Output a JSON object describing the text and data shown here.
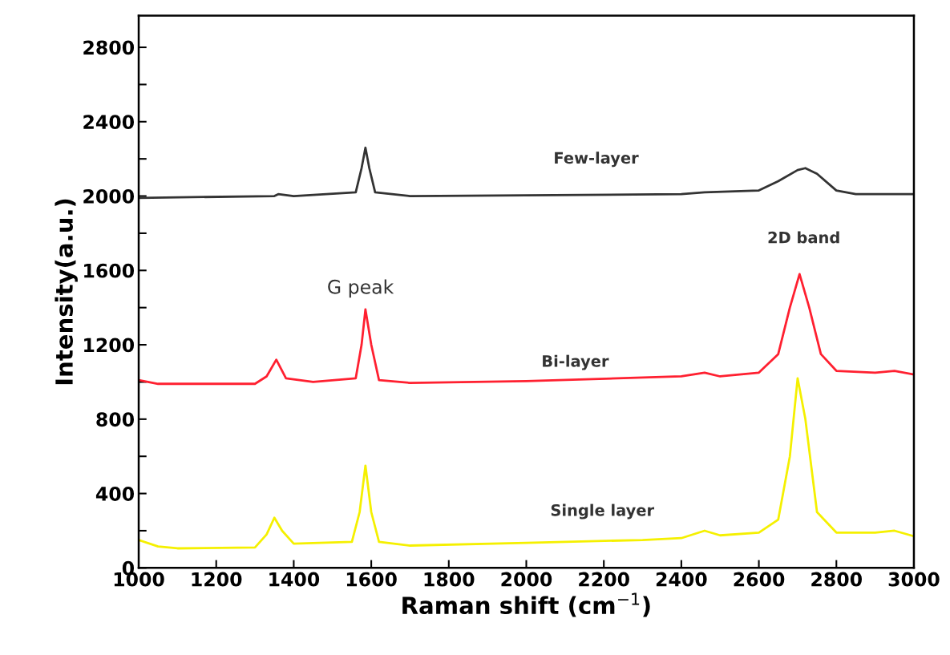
{
  "chart_data": {
    "type": "line",
    "xlabel": "Raman shift (cm$^{−1}$)",
    "ylabel": "Intensity(a.u.)",
    "xlim": [
      1000,
      3000
    ],
    "ylim": [
      0,
      2970
    ],
    "xticks": [
      1000,
      1200,
      1400,
      1600,
      1800,
      2000,
      2200,
      2400,
      2600,
      2800,
      3000
    ],
    "yticks": [
      0,
      {
        "value": 200,
        "label": null
      },
      400,
      {
        "value": 600,
        "label": null
      },
      800,
      {
        "value": 1000,
        "label": null
      },
      1200,
      {
        "value": 1400,
        "label": null
      },
      1600,
      {
        "value": 1800,
        "label": null
      },
      2000,
      {
        "value": 2200,
        "label": null
      },
      2400,
      {
        "value": 2600,
        "label": null
      },
      2800
    ],
    "grid": false,
    "legend": false,
    "marker": "none",
    "line_style": "solid",
    "series": [
      {
        "color": "#f5f000",
        "x": [
          1000,
          1050,
          1100,
          1300,
          1330,
          1350,
          1370,
          1400,
          1550,
          1570,
          1585,
          1600,
          1620,
          1700,
          2000,
          2300,
          2400,
          2460,
          2500,
          2600,
          2650,
          2680,
          2700,
          2720,
          2750,
          2800,
          2900,
          2950,
          3000
        ],
        "values": [
          150,
          115,
          105,
          110,
          180,
          270,
          200,
          130,
          140,
          300,
          550,
          300,
          140,
          120,
          135,
          150,
          160,
          200,
          175,
          190,
          260,
          600,
          1020,
          800,
          300,
          190,
          190,
          200,
          170
        ]
      },
      {
        "color": "#ff2030",
        "x": [
          1000,
          1050,
          1300,
          1330,
          1355,
          1380,
          1450,
          1560,
          1575,
          1585,
          1600,
          1620,
          1700,
          2000,
          2400,
          2460,
          2500,
          2600,
          2650,
          2680,
          2705,
          2730,
          2760,
          2800,
          2900,
          2950,
          3000
        ],
        "values": [
          1010,
          990,
          990,
          1030,
          1120,
          1020,
          1000,
          1020,
          1200,
          1390,
          1200,
          1010,
          995,
          1005,
          1030,
          1050,
          1030,
          1050,
          1150,
          1400,
          1580,
          1400,
          1150,
          1060,
          1050,
          1060,
          1040
        ]
      },
      {
        "color": "#333333",
        "x": [
          1000,
          1350,
          1360,
          1400,
          1560,
          1575,
          1585,
          1595,
          1610,
          1700,
          2400,
          2460,
          2600,
          2650,
          2700,
          2720,
          2750,
          2800,
          2850,
          3000
        ],
        "values": [
          1990,
          2000,
          2010,
          2000,
          2020,
          2150,
          2260,
          2150,
          2020,
          2000,
          2010,
          2020,
          2030,
          2080,
          2140,
          2150,
          2120,
          2030,
          2010,
          2010
        ]
      }
    ],
    "annotations": [
      "Few-layer",
      "G peak",
      "2D band",
      "Bi-layer",
      "Single layer"
    ]
  }
}
